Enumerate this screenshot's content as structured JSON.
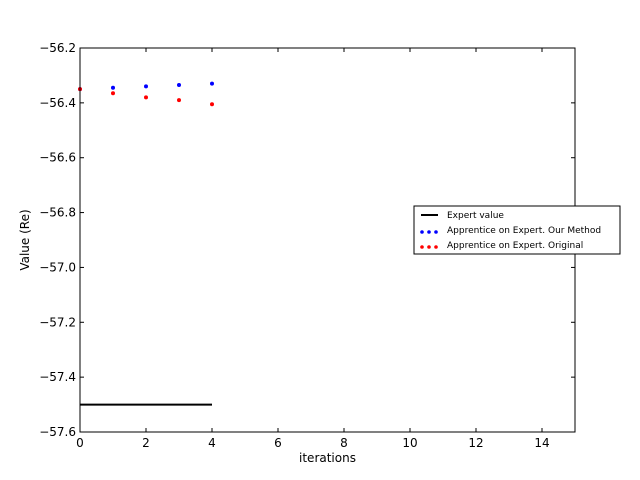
{
  "chart_data": {
    "type": "scatter",
    "xlabel": "iterations",
    "ylabel": "Value (Re)",
    "xlim": [
      0,
      15
    ],
    "ylim": [
      -57.6,
      -56.2
    ],
    "x_ticks": [
      0,
      2,
      4,
      6,
      8,
      10,
      12,
      14
    ],
    "y_ticks": [
      -56.2,
      -56.4,
      -56.6,
      -56.8,
      -57.0,
      -57.2,
      -57.4,
      -57.6
    ],
    "x_tick_labels": [
      "0",
      "2",
      "4",
      "6",
      "8",
      "10",
      "12",
      "14"
    ],
    "y_tick_labels": [
      "−56.2",
      "−56.4",
      "−56.6",
      "−56.8",
      "−57.0",
      "−57.2",
      "−57.4",
      "−57.6"
    ],
    "grid": false,
    "legend_placement": "right",
    "series": [
      {
        "name": "Expert value",
        "kind": "line",
        "color": "#000000",
        "x": [
          0,
          4
        ],
        "y": [
          -57.5,
          -57.5
        ]
      },
      {
        "name": "Apprentice on Expert. Our Method",
        "kind": "points",
        "color": "#0000ff",
        "x": [
          0,
          1,
          2,
          3,
          4
        ],
        "y": [
          -56.35,
          -56.345,
          -56.34,
          -56.335,
          -56.33
        ]
      },
      {
        "name": "Apprentice on Expert. Original",
        "kind": "points",
        "color": "#ff0000",
        "x": [
          0,
          1,
          2,
          3,
          4
        ],
        "y": [
          -56.35,
          -56.365,
          -56.38,
          -56.39,
          -56.405
        ]
      }
    ]
  }
}
